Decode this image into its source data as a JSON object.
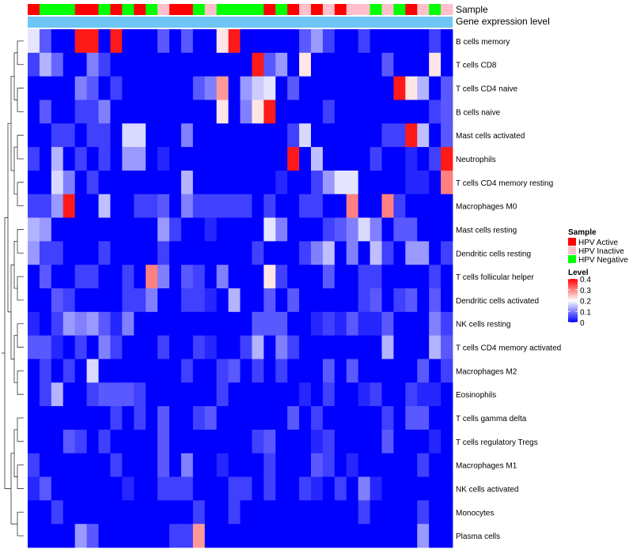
{
  "chart_data": {
    "type": "heatmap",
    "columns": 36,
    "track_labels": [
      "Sample",
      "Gene expression level"
    ],
    "sample_track": [
      "A",
      "N",
      "N",
      "N",
      "A",
      "A",
      "N",
      "A",
      "N",
      "A",
      "N",
      "I",
      "A",
      "A",
      "N",
      "I",
      "N",
      "N",
      "N",
      "N",
      "A",
      "N",
      "A",
      "I",
      "A",
      "I",
      "A",
      "I",
      "I",
      "N",
      "I",
      "N",
      "A",
      "I",
      "N",
      "I"
    ],
    "gene_expression_track_color": "#6ec6f5",
    "rows": [
      {
        "label": "B cells memory",
        "values": [
          0.18,
          0.07,
          0.0,
          0.0,
          0.38,
          0.38,
          0.0,
          0.38,
          0.0,
          0.0,
          0.0,
          0.07,
          0.0,
          0.07,
          0.0,
          0.0,
          0.22,
          0.38,
          0.0,
          0.0,
          0.0,
          0.0,
          0.0,
          0.07,
          0.12,
          0.05,
          0.0,
          0.0,
          0.05,
          0.0,
          0.0,
          0.0,
          0.0,
          0.0,
          0.05,
          0.0
        ]
      },
      {
        "label": "T cells CD8",
        "values": [
          0.05,
          0.14,
          0.08,
          0.0,
          0.0,
          0.1,
          0.05,
          0.0,
          0.0,
          0.0,
          0.0,
          0.0,
          0.0,
          0.0,
          0.0,
          0.0,
          0.0,
          0.0,
          0.0,
          0.38,
          0.07,
          0.12,
          0.0,
          0.22,
          0.0,
          0.0,
          0.0,
          0.0,
          0.0,
          0.0,
          0.07,
          0.0,
          0.0,
          0.0,
          0.22,
          0.0
        ]
      },
      {
        "label": "T cells CD4 naive",
        "values": [
          0.0,
          0.0,
          0.0,
          0.0,
          0.1,
          0.07,
          0.0,
          0.05,
          0.0,
          0.0,
          0.0,
          0.0,
          0.0,
          0.0,
          0.07,
          0.1,
          0.28,
          0.0,
          0.12,
          0.16,
          0.18,
          0.0,
          0.07,
          0.0,
          0.0,
          0.0,
          0.0,
          0.0,
          0.0,
          0.0,
          0.0,
          0.38,
          0.22,
          0.14,
          0.0,
          0.07
        ]
      },
      {
        "label": "B cells naive",
        "values": [
          0.0,
          0.07,
          0.0,
          0.0,
          0.05,
          0.05,
          0.1,
          0.0,
          0.0,
          0.0,
          0.0,
          0.0,
          0.0,
          0.0,
          0.0,
          0.0,
          0.22,
          0.0,
          0.1,
          0.22,
          0.38,
          0.0,
          0.0,
          0.0,
          0.0,
          0.05,
          0.0,
          0.0,
          0.0,
          0.0,
          0.0,
          0.0,
          0.0,
          0.0,
          0.05,
          0.07
        ]
      },
      {
        "label": "Mast cells activated",
        "values": [
          0.0,
          0.0,
          0.05,
          0.05,
          0.0,
          0.05,
          0.05,
          0.0,
          0.17,
          0.17,
          0.0,
          0.0,
          0.0,
          0.1,
          0.0,
          0.0,
          0.0,
          0.0,
          0.0,
          0.0,
          0.0,
          0.0,
          0.05,
          0.17,
          0.0,
          0.0,
          0.0,
          0.0,
          0.0,
          0.0,
          0.05,
          0.05,
          0.38,
          0.15,
          0.0,
          0.07
        ]
      },
      {
        "label": "Neutrophils",
        "values": [
          0.05,
          0.0,
          0.14,
          0.0,
          0.05,
          0.0,
          0.05,
          0.0,
          0.12,
          0.12,
          0.0,
          0.03,
          0.0,
          0.0,
          0.0,
          0.0,
          0.0,
          0.0,
          0.0,
          0.0,
          0.0,
          0.0,
          0.38,
          0.0,
          0.15,
          0.0,
          0.0,
          0.0,
          0.0,
          0.05,
          0.0,
          0.0,
          0.03,
          0.0,
          0.05,
          0.38
        ]
      },
      {
        "label": "T cells CD4 memory resting",
        "values": [
          0.0,
          0.0,
          0.17,
          0.1,
          0.0,
          0.05,
          0.0,
          0.0,
          0.0,
          0.0,
          0.0,
          0.0,
          0.0,
          0.14,
          0.0,
          0.0,
          0.0,
          0.0,
          0.0,
          0.0,
          0.0,
          0.03,
          0.0,
          0.0,
          0.05,
          0.12,
          0.18,
          0.18,
          0.0,
          0.0,
          0.0,
          0.0,
          0.03,
          0.03,
          0.0,
          0.3
        ]
      },
      {
        "label": "Macrophages M0",
        "values": [
          0.05,
          0.05,
          0.12,
          0.38,
          0.0,
          0.0,
          0.15,
          0.0,
          0.0,
          0.05,
          0.05,
          0.07,
          0.0,
          0.1,
          0.05,
          0.05,
          0.05,
          0.05,
          0.05,
          0.0,
          0.05,
          0.0,
          0.0,
          0.05,
          0.05,
          0.0,
          0.0,
          0.3,
          0.0,
          0.0,
          0.3,
          0.05,
          0.0,
          0.0,
          0.0,
          0.0
        ]
      },
      {
        "label": "Mast cells resting",
        "values": [
          0.14,
          0.12,
          0.0,
          0.0,
          0.0,
          0.0,
          0.0,
          0.0,
          0.0,
          0.0,
          0.0,
          0.12,
          0.05,
          0.0,
          0.0,
          0.03,
          0.0,
          0.0,
          0.0,
          0.0,
          0.18,
          0.1,
          0.0,
          0.0,
          0.0,
          0.05,
          0.07,
          0.1,
          0.17,
          0.1,
          0.0,
          0.07,
          0.07,
          0.0,
          0.0,
          0.0
        ]
      },
      {
        "label": "Dendritic cells resting",
        "values": [
          0.12,
          0.05,
          0.05,
          0.0,
          0.0,
          0.0,
          0.05,
          0.0,
          0.0,
          0.0,
          0.0,
          0.05,
          0.0,
          0.0,
          0.0,
          0.0,
          0.0,
          0.0,
          0.0,
          0.05,
          0.0,
          0.0,
          0.0,
          0.05,
          0.1,
          0.15,
          0.0,
          0.1,
          0.0,
          0.15,
          0.05,
          0.0,
          0.12,
          0.12,
          0.0,
          0.05
        ]
      },
      {
        "label": "T cells follicular helper",
        "values": [
          0.0,
          0.07,
          0.0,
          0.0,
          0.05,
          0.05,
          0.0,
          0.0,
          0.05,
          0.0,
          0.3,
          0.1,
          0.0,
          0.07,
          0.05,
          0.0,
          0.1,
          0.0,
          0.0,
          0.0,
          0.22,
          0.05,
          0.0,
          0.0,
          0.0,
          0.07,
          0.0,
          0.0,
          0.05,
          0.05,
          0.0,
          0.0,
          0.0,
          0.0,
          0.05,
          0.0
        ]
      },
      {
        "label": "Dendritic cells activated",
        "values": [
          0.0,
          0.0,
          0.07,
          0.05,
          0.0,
          0.0,
          0.0,
          0.0,
          0.05,
          0.05,
          0.1,
          0.0,
          0.0,
          0.05,
          0.05,
          0.03,
          0.0,
          0.14,
          0.0,
          0.0,
          0.07,
          0.0,
          0.07,
          0.0,
          0.0,
          0.0,
          0.0,
          0.0,
          0.05,
          0.07,
          0.0,
          0.05,
          0.07,
          0.0,
          0.07,
          0.0
        ]
      },
      {
        "label": "NK cells resting",
        "values": [
          0.03,
          0.0,
          0.05,
          0.12,
          0.1,
          0.12,
          0.07,
          0.03,
          0.1,
          0.0,
          0.0,
          0.0,
          0.0,
          0.0,
          0.0,
          0.0,
          0.0,
          0.0,
          0.0,
          0.07,
          0.07,
          0.07,
          0.0,
          0.0,
          0.03,
          0.05,
          0.03,
          0.07,
          0.03,
          0.03,
          0.07,
          0.0,
          0.0,
          0.0,
          0.1,
          0.05
        ]
      },
      {
        "label": "T cells CD4 memory activated",
        "values": [
          0.07,
          0.07,
          0.03,
          0.0,
          0.05,
          0.0,
          0.1,
          0.05,
          0.0,
          0.0,
          0.0,
          0.05,
          0.0,
          0.0,
          0.05,
          0.03,
          0.0,
          0.0,
          0.05,
          0.14,
          0.0,
          0.1,
          0.05,
          0.0,
          0.0,
          0.0,
          0.0,
          0.0,
          0.0,
          0.0,
          0.14,
          0.0,
          0.0,
          0.0,
          0.14,
          0.07
        ]
      },
      {
        "label": "Macrophages M2",
        "values": [
          0.0,
          0.05,
          0.0,
          0.05,
          0.0,
          0.17,
          0.0,
          0.0,
          0.0,
          0.0,
          0.0,
          0.0,
          0.0,
          0.05,
          0.0,
          0.0,
          0.05,
          0.07,
          0.0,
          0.05,
          0.0,
          0.05,
          0.0,
          0.0,
          0.0,
          0.07,
          0.0,
          0.07,
          0.0,
          0.0,
          0.0,
          0.0,
          0.0,
          0.07,
          0.0,
          0.05
        ]
      },
      {
        "label": "Eosinophils",
        "values": [
          0.0,
          0.05,
          0.14,
          0.0,
          0.0,
          0.05,
          0.07,
          0.07,
          0.07,
          0.05,
          0.0,
          0.0,
          0.0,
          0.0,
          0.0,
          0.0,
          0.05,
          0.0,
          0.0,
          0.0,
          0.0,
          0.0,
          0.0,
          0.03,
          0.0,
          0.05,
          0.0,
          0.0,
          0.03,
          0.05,
          0.0,
          0.0,
          0.05,
          0.03,
          0.03,
          0.0
        ]
      },
      {
        "label": "T cells gamma delta",
        "values": [
          0.0,
          0.0,
          0.0,
          0.0,
          0.0,
          0.0,
          0.0,
          0.05,
          0.0,
          0.05,
          0.0,
          0.07,
          0.0,
          0.0,
          0.05,
          0.07,
          0.0,
          0.0,
          0.0,
          0.0,
          0.0,
          0.0,
          0.07,
          0.0,
          0.05,
          0.0,
          0.0,
          0.0,
          0.0,
          0.0,
          0.05,
          0.0,
          0.07,
          0.07,
          0.0,
          0.0
        ]
      },
      {
        "label": "T cells regulatory  Tregs",
        "values": [
          0.0,
          0.0,
          0.0,
          0.07,
          0.05,
          0.0,
          0.05,
          0.0,
          0.0,
          0.0,
          0.0,
          0.07,
          0.0,
          0.0,
          0.0,
          0.0,
          0.0,
          0.0,
          0.0,
          0.05,
          0.07,
          0.0,
          0.0,
          0.0,
          0.03,
          0.05,
          0.0,
          0.0,
          0.0,
          0.0,
          0.07,
          0.0,
          0.0,
          0.0,
          0.03,
          0.0
        ]
      },
      {
        "label": "Macrophages M1",
        "values": [
          0.05,
          0.0,
          0.0,
          0.0,
          0.0,
          0.0,
          0.0,
          0.05,
          0.0,
          0.0,
          0.0,
          0.07,
          0.0,
          0.1,
          0.0,
          0.0,
          0.03,
          0.0,
          0.0,
          0.0,
          0.05,
          0.0,
          0.0,
          0.0,
          0.07,
          0.05,
          0.0,
          0.03,
          0.0,
          0.0,
          0.0,
          0.0,
          0.0,
          0.05,
          0.0,
          0.0
        ]
      },
      {
        "label": "NK cells activated",
        "values": [
          0.03,
          0.07,
          0.0,
          0.0,
          0.0,
          0.0,
          0.0,
          0.0,
          0.03,
          0.0,
          0.0,
          0.05,
          0.05,
          0.05,
          0.0,
          0.0,
          0.0,
          0.05,
          0.05,
          0.0,
          0.05,
          0.0,
          0.0,
          0.05,
          0.03,
          0.0,
          0.05,
          0.0,
          0.1,
          0.03,
          0.0,
          0.0,
          0.0,
          0.0,
          0.0,
          0.0
        ]
      },
      {
        "label": "Monocytes",
        "values": [
          0.0,
          0.0,
          0.05,
          0.0,
          0.0,
          0.0,
          0.0,
          0.0,
          0.0,
          0.0,
          0.0,
          0.0,
          0.0,
          0.0,
          0.05,
          0.0,
          0.0,
          0.05,
          0.0,
          0.0,
          0.0,
          0.0,
          0.0,
          0.0,
          0.0,
          0.0,
          0.0,
          0.0,
          0.05,
          0.0,
          0.0,
          0.0,
          0.0,
          0.05,
          0.0,
          0.0
        ]
      },
      {
        "label": "Plasma cells",
        "values": [
          0.0,
          0.0,
          0.0,
          0.0,
          0.12,
          0.07,
          0.0,
          0.0,
          0.0,
          0.0,
          0.0,
          0.0,
          0.05,
          0.05,
          0.28,
          0.0,
          0.0,
          0.0,
          0.0,
          0.0,
          0.0,
          0.0,
          0.0,
          0.0,
          0.0,
          0.0,
          0.0,
          0.0,
          0.0,
          0.0,
          0.0,
          0.0,
          0.0,
          0.12,
          0.0,
          0.0
        ]
      }
    ],
    "color_scale": {
      "min": 0,
      "max": 0.4,
      "low": "#0000ff",
      "mid": "#ffffff",
      "high": "#ff0000",
      "mid_value": 0.2
    },
    "legend": {
      "sample_title": "Sample",
      "sample_items": [
        {
          "code": "A",
          "label": "HPV Active",
          "color": "#ff0000"
        },
        {
          "code": "I",
          "label": "HPV Inactive",
          "color": "#ffc0cb"
        },
        {
          "code": "N",
          "label": "HPV Negative",
          "color": "#00ff00"
        }
      ],
      "level_title": "Level",
      "level_ticks": [
        0.4,
        0.3,
        0.2,
        0.1,
        0
      ],
      "level_tick_labels": [
        "0.4",
        "0.3",
        "0.2",
        "0.1",
        "0"
      ],
      "placement": "right"
    },
    "row_dendrogram": true
  }
}
